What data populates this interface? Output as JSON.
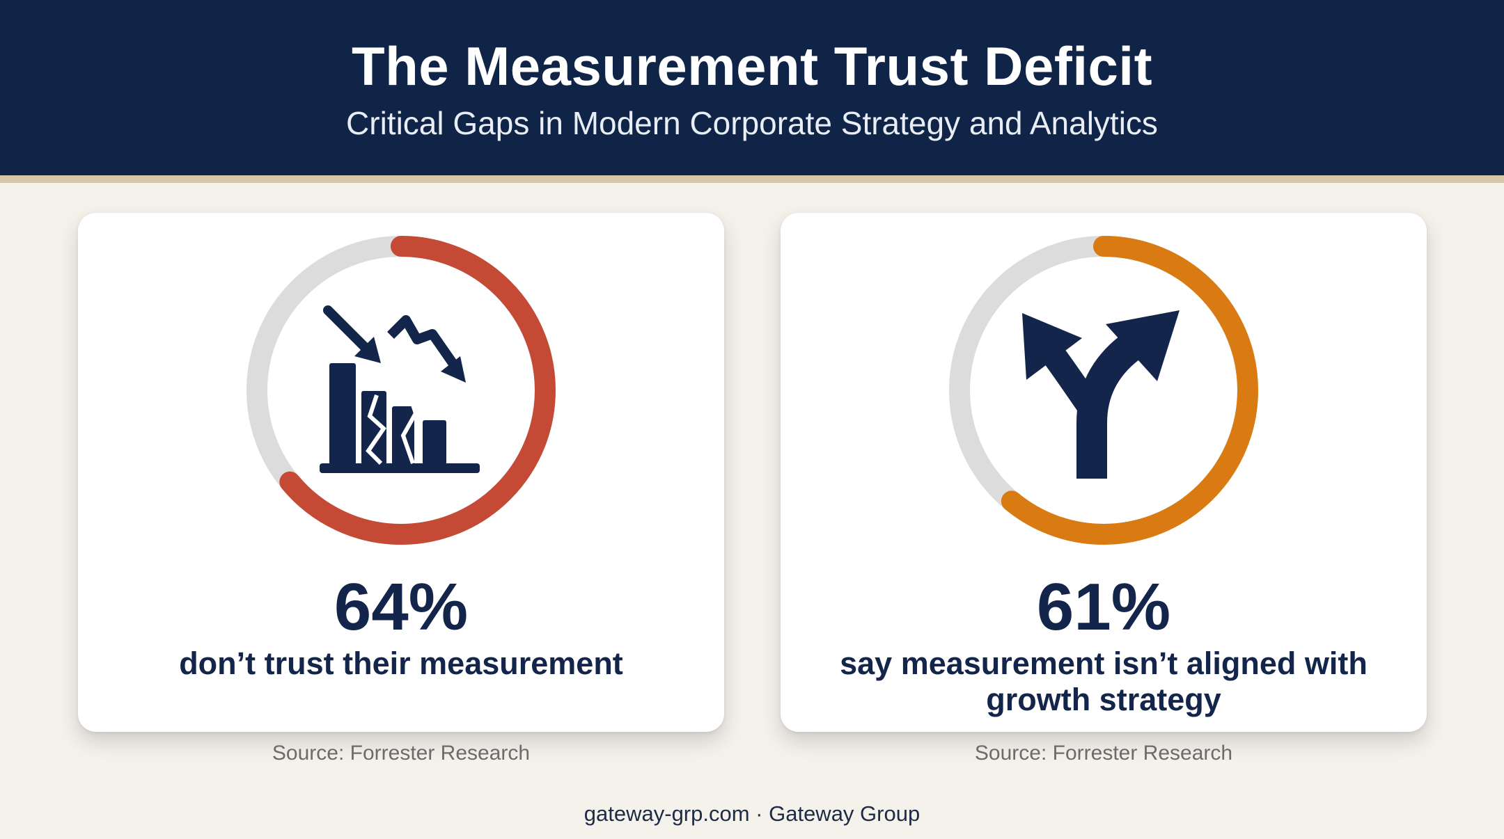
{
  "header": {
    "title": "The Measurement Trust Deficit",
    "subtitle": "Critical Gaps in Modern Corporate Strategy and Analytics"
  },
  "colors": {
    "header_bg": "#0f2447",
    "text_navy": "#13254a",
    "track_grey": "#dcdcdc",
    "accent_red": "#c44a35",
    "accent_orange": "#d97a12"
  },
  "chart_data": [
    {
      "type": "pie",
      "variant": "donut-progress",
      "value": 64,
      "max": 100,
      "value_label": "64%",
      "label": "don’t trust their measurement",
      "color": "#c44a35",
      "track_color": "#dcdcdc",
      "icon": "broken-declining-bar-chart-icon",
      "source": "Source: Forrester Research"
    },
    {
      "type": "pie",
      "variant": "donut-progress",
      "value": 61,
      "max": 100,
      "value_label": "61%",
      "label": "say measurement isn’t aligned with growth strategy",
      "color": "#d97a12",
      "track_color": "#dcdcdc",
      "icon": "diverging-arrows-icon",
      "source": "Source: Forrester Research"
    }
  ],
  "footer": {
    "text": "gateway-grp.com · Gateway Group"
  }
}
